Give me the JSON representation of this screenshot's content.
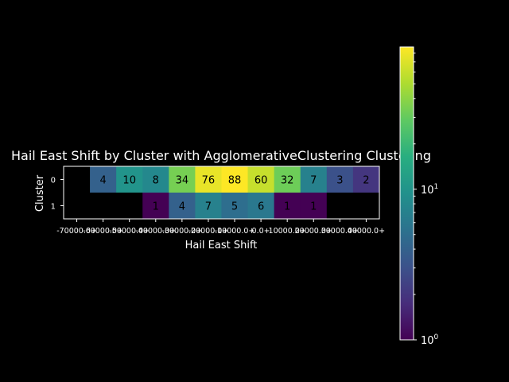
{
  "chart_data": {
    "type": "heatmap",
    "title": "Hail East Shift by Cluster with AgglomerativeClustering Clustering",
    "xlabel": "Hail East Shift",
    "ylabel": "Cluster",
    "x_categories": [
      "-70000.0+",
      "-60000.0+",
      "-50000.0+",
      "-40000.0+",
      "-30000.0+",
      "-20000.0+",
      "-10000.0+",
      "0.0+",
      "10000.0+",
      "20000.0+",
      "30000.0+",
      "40000.0+"
    ],
    "y_categories": [
      "0",
      "1"
    ],
    "values": [
      [
        null,
        4,
        10,
        8,
        34,
        76,
        88,
        60,
        32,
        7,
        3,
        2
      ],
      [
        null,
        null,
        null,
        1,
        4,
        7,
        5,
        6,
        1,
        1,
        null,
        null
      ]
    ],
    "colorscale": "viridis",
    "color_scale_type": "log",
    "color_range": [
      1,
      88
    ],
    "colorbar_ticks": [
      {
        "value": 1,
        "base": "10",
        "exp": "0"
      },
      {
        "value": 10,
        "base": "10",
        "exp": "1"
      }
    ],
    "empty_cell_color": "#000000"
  }
}
